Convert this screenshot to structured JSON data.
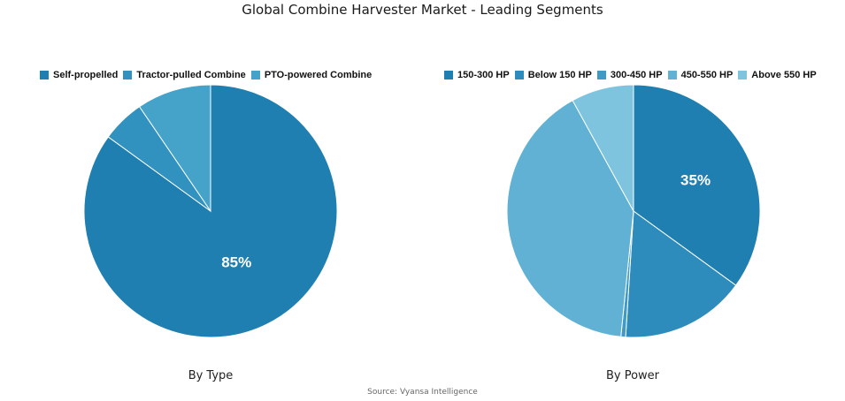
{
  "title": "Global Combine Harvester Market - Leading Segments",
  "source": "Source: Vyansa Intelligence",
  "chart_data": [
    {
      "type": "pie",
      "caption": "By Type",
      "legend_placement": "top",
      "slices": [
        {
          "label": "Self-propelled",
          "value": 85,
          "color": "#1e7fb0",
          "data_label": "85%"
        },
        {
          "label": "Tractor-pulled Combine",
          "value": 5.5,
          "color": "#3191bf",
          "data_label": ""
        },
        {
          "label": "PTO-powered Combine",
          "value": 9.5,
          "color": "#45a3c9",
          "data_label": ""
        }
      ]
    },
    {
      "type": "pie",
      "caption": "By Power",
      "legend_placement": "top",
      "slices": [
        {
          "label": "150-300 HP",
          "value": 35,
          "color": "#1e7fb0",
          "data_label": "35%"
        },
        {
          "label": "Below 150 HP",
          "value": 16,
          "color": "#2e8cbc",
          "data_label": ""
        },
        {
          "label": "300-450 HP",
          "value": 0.6,
          "color": "#3f9bc6",
          "data_label": ""
        },
        {
          "label": "450-550 HP",
          "value": 40.4,
          "color": "#60b1d3",
          "data_label": ""
        },
        {
          "label": "Above 550 HP",
          "value": 8,
          "color": "#7ec4de",
          "data_label": ""
        }
      ]
    }
  ]
}
